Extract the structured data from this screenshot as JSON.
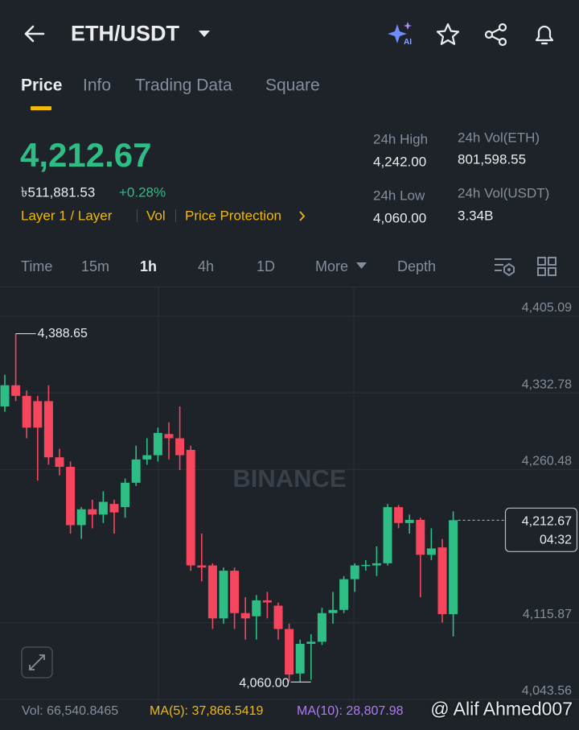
{
  "header": {
    "title": "ETH/USDT"
  },
  "tabs": [
    "Price",
    "Info",
    "Trading Data",
    "Square"
  ],
  "ticker": {
    "price": "4,212.67",
    "local_price": "৳511,881.53",
    "change": "+0.28%",
    "tags": [
      "Layer 1 / Layer",
      "Vol",
      "Price Protection"
    ],
    "stats": [
      {
        "label": "24h High",
        "value": "4,242.00"
      },
      {
        "label": "24h Low",
        "value": "4,060.00"
      },
      {
        "label": "24h Vol(ETH)",
        "value": "801,598.55"
      },
      {
        "label": "24h Vol(USDT)",
        "value": "3.34B"
      }
    ]
  },
  "intervals": [
    "Time",
    "15m",
    "1h",
    "4h",
    "1D",
    "More",
    "Depth"
  ],
  "chart_data": {
    "type": "candlestick",
    "watermark": "BINANCE",
    "up_color": "#2ebd85",
    "down_color": "#f6465d",
    "open": [
      4320,
      4340,
      4330,
      4325,
      4325,
      4272,
      4263,
      4208,
      4223,
      4218,
      4228,
      4225,
      4248,
      4270,
      4274,
      4294,
      4290,
      4279,
      4170,
      4170,
      4120,
      4165,
      4125,
      4122,
      4137,
      4132,
      4110,
      4068,
      4096,
      4098,
      4125,
      4128,
      4157,
      4170,
      4170,
      4172,
      4225,
      4210,
      4213,
      4180,
      4187,
      4124
    ],
    "high": [
      4350,
      4388.65,
      4335,
      4330,
      4340,
      4280,
      4268,
      4225,
      4232,
      4240,
      4232,
      4252,
      4283,
      4290,
      4300,
      4305,
      4320,
      4283,
      4200,
      4172,
      4168,
      4168,
      4140,
      4142,
      4145,
      4135,
      4115,
      4100,
      4105,
      4130,
      4145,
      4160,
      4172,
      4175,
      4188,
      4228,
      4227,
      4218,
      4215,
      4205,
      4195,
      4221
    ],
    "low": [
      4315,
      4325,
      4290,
      4250,
      4265,
      4255,
      4200,
      4195,
      4205,
      4210,
      4200,
      4215,
      4245,
      4265,
      4268,
      4270,
      4260,
      4165,
      4155,
      4110,
      4115,
      4110,
      4100,
      4100,
      4120,
      4100,
      4060,
      4060,
      4062,
      4095,
      4115,
      4125,
      4145,
      4165,
      4160,
      4170,
      4205,
      4200,
      4140,
      4175,
      4116,
      4103
    ],
    "close": [
      4340,
      4330,
      4300,
      4300,
      4272,
      4263,
      4208,
      4223,
      4218,
      4230,
      4220,
      4248,
      4270,
      4274,
      4295,
      4290,
      4274,
      4170,
      4168,
      4120,
      4165,
      4125,
      4120,
      4137,
      4135,
      4110,
      4067,
      4096,
      4098,
      4125,
      4128,
      4157,
      4170,
      4170.5,
      4172,
      4225,
      4210,
      4213,
      4180,
      4186,
      4124,
      4212.67
    ],
    "ylim": [
      4039,
      4432.4
    ],
    "yticks": [
      {
        "value": 4405.09,
        "label": "4,405.09"
      },
      {
        "value": 4332.78,
        "label": "4,332.78"
      },
      {
        "value": 4260.48,
        "label": "4,260.48"
      },
      {
        "value": 4115.87,
        "label": "4,115.87"
      },
      {
        "value": 4043.56,
        "label": "4,043.56"
      }
    ],
    "grid": true,
    "annotations": [
      {
        "value": 4388.65,
        "label": "4,388.65",
        "candle": 1,
        "side": "right"
      },
      {
        "value": 4060,
        "label": "4,060.00",
        "candle": 26,
        "side": "left"
      }
    ],
    "current_price": {
      "value": 4212.67,
      "label": "4,212.67",
      "countdown": "04:32"
    }
  },
  "indicators": [
    "Vol: 66,540.8465",
    "MA(5): 37,866.5419",
    "MA(10): 28,807.98"
  ],
  "watermark": "@ Alif Ahmed007"
}
